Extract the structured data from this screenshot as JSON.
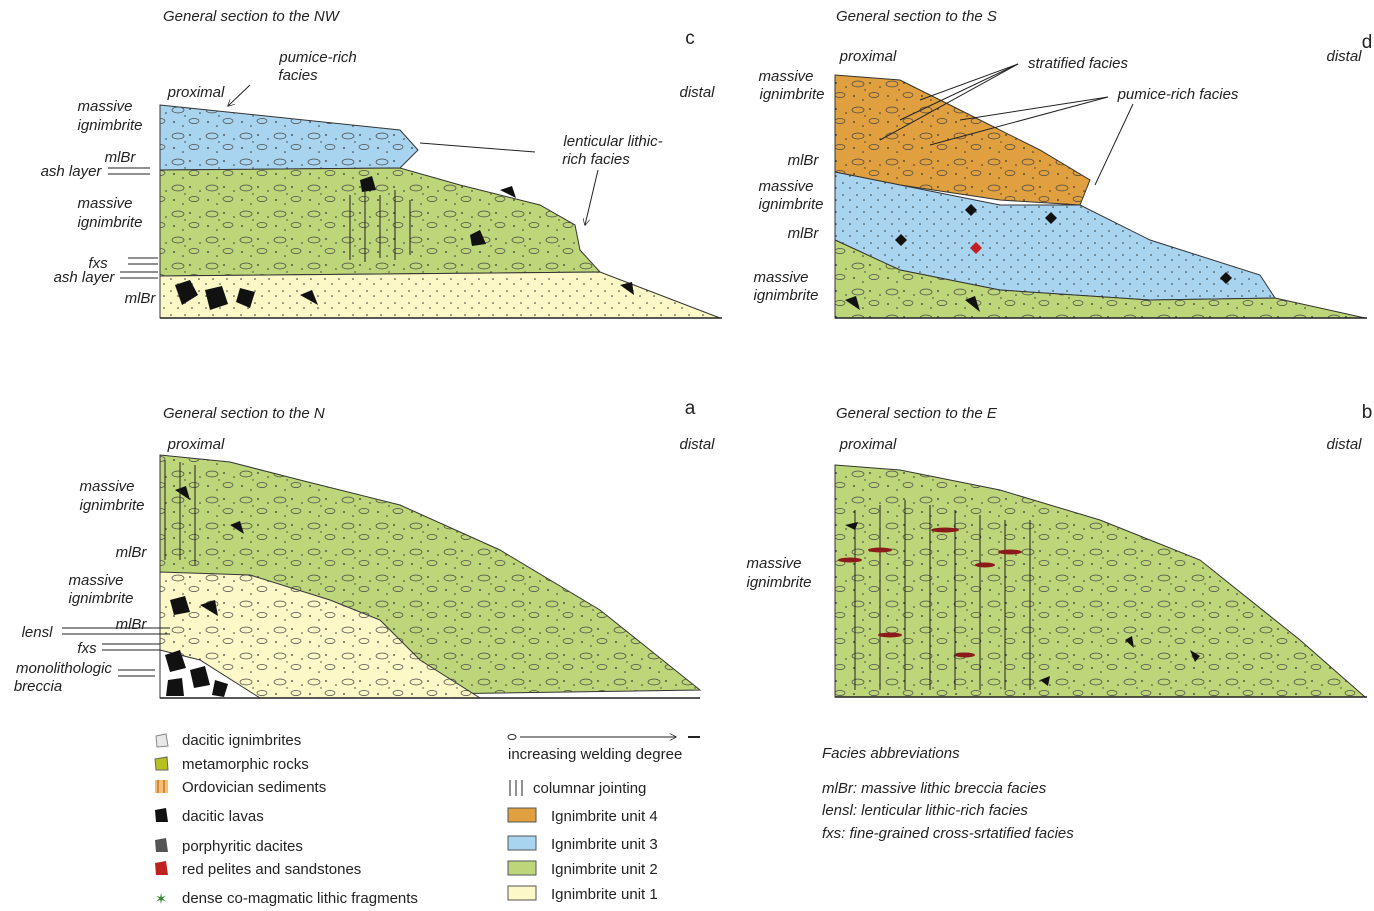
{
  "panels": [
    {
      "title": "General section to the NW",
      "letter": "c",
      "proximal": "proximal",
      "distal": "distal",
      "labels": [
        [
          "massive",
          "ignimbrite"
        ],
        [
          "mlBr"
        ],
        [
          "ash layer"
        ],
        [
          "massive",
          "ignimbrite"
        ],
        [
          "fxs"
        ],
        [
          "ash layer"
        ],
        [
          "mlBr"
        ]
      ],
      "annotations": [
        [
          "pumice-rich",
          "facies"
        ],
        [
          "lenticular lithic-",
          "rich facies"
        ]
      ]
    },
    {
      "title": "General section to the S",
      "letter": "d",
      "proximal": "proximal",
      "distal": "distal",
      "labels": [
        [
          "massive",
          "ignimbrite"
        ],
        [
          "mlBr"
        ],
        [
          "massive",
          "ignimbrite"
        ],
        [
          "mlBr"
        ],
        [
          "massive",
          "ignimbrite"
        ]
      ],
      "annotations": [
        [
          "stratified facies"
        ],
        [
          "pumice-rich facies"
        ]
      ]
    },
    {
      "title": "General section to the N",
      "letter": "a",
      "proximal": "proximal",
      "distal": "distal",
      "labels": [
        [
          "massive",
          "ignimbrite"
        ],
        [
          "mlBr"
        ],
        [
          "massive",
          "ignimbrite"
        ],
        [
          "mlBr"
        ],
        [
          "lensl"
        ],
        [
          "fxs"
        ],
        [
          "monolithologic",
          "breccia"
        ]
      ]
    },
    {
      "title": "General section to the E",
      "letter": "b",
      "proximal": "proximal",
      "distal": "distal",
      "labels": [
        [
          "massive",
          "ignimbrite"
        ]
      ]
    }
  ],
  "legend": {
    "rocks": [
      "dacitic ignimbrites",
      "metamorphic rocks",
      "Ordovician sediments",
      "dacitic lavas",
      "porphyritic dacites",
      "red pelites and sandstones",
      "dense co-magmatic lithic fragments"
    ],
    "welding": "increasing welding degree",
    "jointing": "columnar jointing",
    "units": [
      "Ignimbrite unit 4",
      "Ignimbrite unit 3",
      "Ignimbrite unit 2",
      "Ignimbrite unit 1"
    ]
  },
  "facies_abbreviations": {
    "title": "Facies abbreviations",
    "items": [
      "mlBr: massive lithic breccia facies",
      "lensl: lenticular lithic-rich facies",
      "fxs: fine-grained cross-srtatified facies"
    ]
  }
}
